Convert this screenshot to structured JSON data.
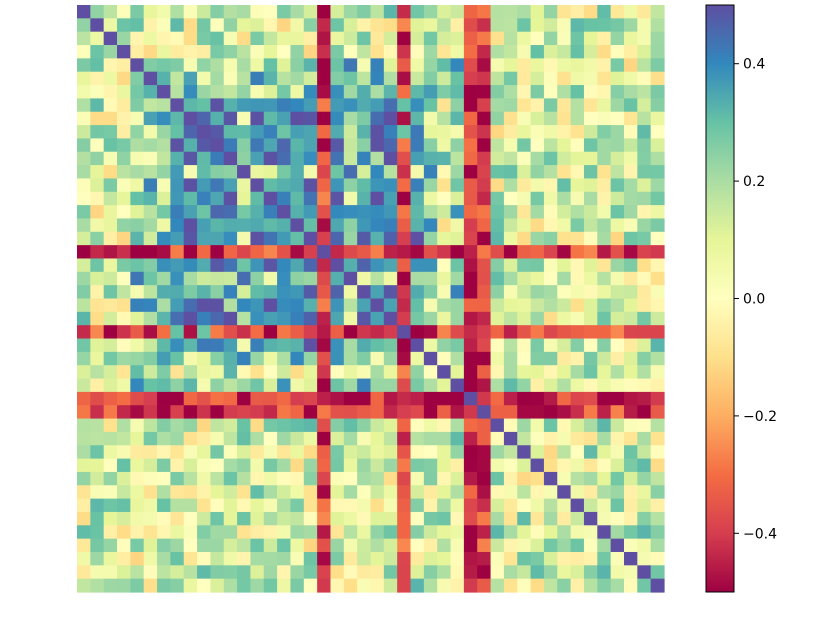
{
  "chart_data": {
    "type": "heatmap",
    "title": "",
    "xlabel": "",
    "ylabel": "",
    "n_rows": 44,
    "n_cols": 44,
    "colormap": "Spectral",
    "vmin": -0.5,
    "vmax": 0.5,
    "axes_visible": false,
    "grid": false,
    "colorbar": {
      "ticks": [
        0.4,
        0.2,
        0.0,
        -0.2,
        -0.4
      ],
      "tick_labels": [
        "0.4",
        "0.2",
        "0.0",
        "−0.2",
        "−0.4"
      ]
    },
    "cluster_structure": {
      "cluster_a_indices": [
        7,
        8,
        9,
        10,
        11,
        13,
        14,
        15,
        16,
        17,
        19,
        21,
        22,
        23,
        24,
        25
      ],
      "cluster_b_indices": [
        4,
        5,
        6,
        12,
        20,
        26,
        28
      ],
      "strong_negative_indices": [
        18,
        24,
        29,
        30
      ],
      "within_cluster_a_value": 0.5,
      "cluster_b_value": 0.32,
      "a_vs_b_value": 0.22,
      "typical_other_value": 0.1
    },
    "seed": 20240517,
    "colors": {
      "stops": [
        "#9e0142",
        "#d53e4f",
        "#f46d43",
        "#fdae61",
        "#fee08b",
        "#ffffbf",
        "#e6f598",
        "#abdda4",
        "#66c2a5",
        "#3288bd",
        "#5e4fa2"
      ]
    }
  }
}
